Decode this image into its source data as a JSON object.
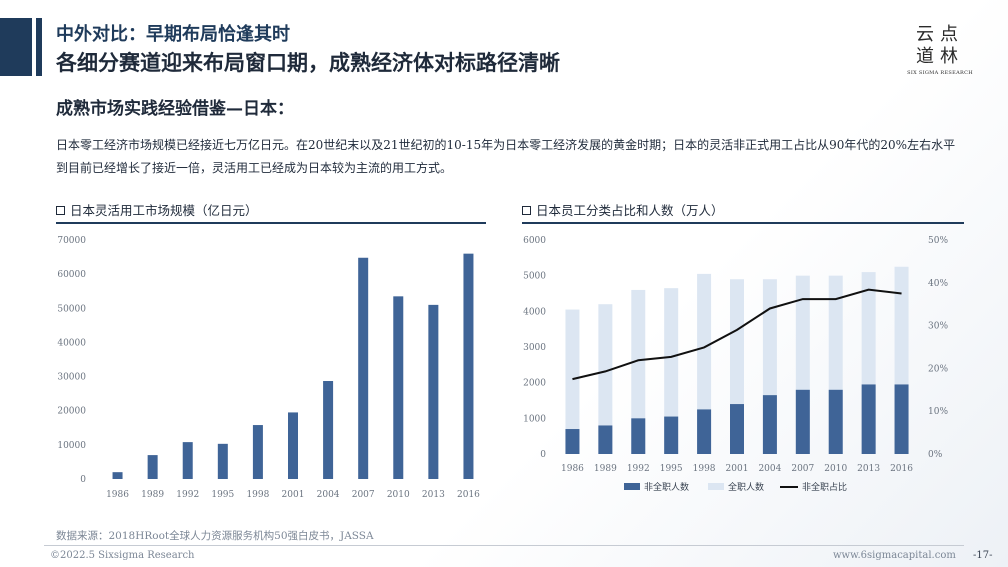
{
  "header": {
    "top_title": "中外对比：早期布局恰逢其时",
    "main_title": "各细分赛道迎来布局窗口期，成熟经济体对标路径清晰"
  },
  "logo": {
    "cn_line1": "云点",
    "cn_line2": "道林",
    "en": "SIX SIGMA RESEARCH"
  },
  "section_title": "成熟市场实践经验借鉴—日本：",
  "intro_text": "日本零工经济市场规模已经接近七万亿日元。在20世纪末以及21世纪初的10-15年为日本零工经济发展的黄金时期；日本的灵活非正式用工占比从90年代的20%左右水平到目前已经增长了接近一倍，灵活用工已经成为日本较为主流的用工方式。",
  "colors": {
    "dark_navy": "#1f3b5b",
    "bar_blue": "#3f6497",
    "light_bar": "#dce6f2",
    "line_black": "#111111"
  },
  "chart_data": [
    {
      "type": "bar",
      "title": "日本灵活用工市场规模（亿日元）",
      "categories": [
        "1986",
        "1989",
        "1992",
        "1995",
        "1998",
        "2001",
        "2004",
        "2007",
        "2010",
        "2013",
        "2016"
      ],
      "values": [
        2000,
        7000,
        10800,
        10300,
        15800,
        19500,
        28700,
        64800,
        53500,
        51000,
        66000
      ],
      "yticks": [
        "0",
        "10000",
        "20000",
        "30000",
        "40000",
        "50000",
        "60000",
        "70000"
      ],
      "ylim": [
        0,
        70000
      ],
      "grid": false
    },
    {
      "type": "bar+line",
      "title": "日本员工分类占比和人数（万人）",
      "categories": [
        "1986",
        "1989",
        "1992",
        "1995",
        "1998",
        "2001",
        "2004",
        "2007",
        "2010",
        "2013",
        "2016"
      ],
      "series": [
        {
          "name": "非全职人数",
          "kind": "bar",
          "axis": "left",
          "values": [
            700,
            800,
            1000,
            1050,
            1250,
            1400,
            1650,
            1800,
            1800,
            1950,
            1950
          ]
        },
        {
          "name": "全职人数",
          "kind": "bar",
          "axis": "left",
          "values": [
            4050,
            4200,
            4600,
            4650,
            5050,
            4900,
            4900,
            5000,
            5000,
            5100,
            5250
          ]
        },
        {
          "name": "非全职占比",
          "kind": "line",
          "axis": "right",
          "values": [
            17.5,
            19.3,
            21.9,
            22.7,
            24.9,
            29.0,
            34.0,
            36.2,
            36.2,
            38.4,
            37.5
          ]
        }
      ],
      "yticks_left": [
        "0",
        "1000",
        "2000",
        "3000",
        "4000",
        "5000",
        "6000"
      ],
      "yticks_right": [
        "0%",
        "10%",
        "20%",
        "30%",
        "40%",
        "50%"
      ],
      "ylim_left": [
        0,
        6000
      ],
      "ylim_right": [
        0,
        50
      ],
      "legend_position": "bottom",
      "grid": false
    }
  ],
  "source": "数据来源：2018HRoot全球人力资源服务机构50强白皮书，JASSA",
  "footer": {
    "left": "©2022.5 Sixsigma Research",
    "right": "www.6sigmacapital.com",
    "page": "-17-"
  }
}
